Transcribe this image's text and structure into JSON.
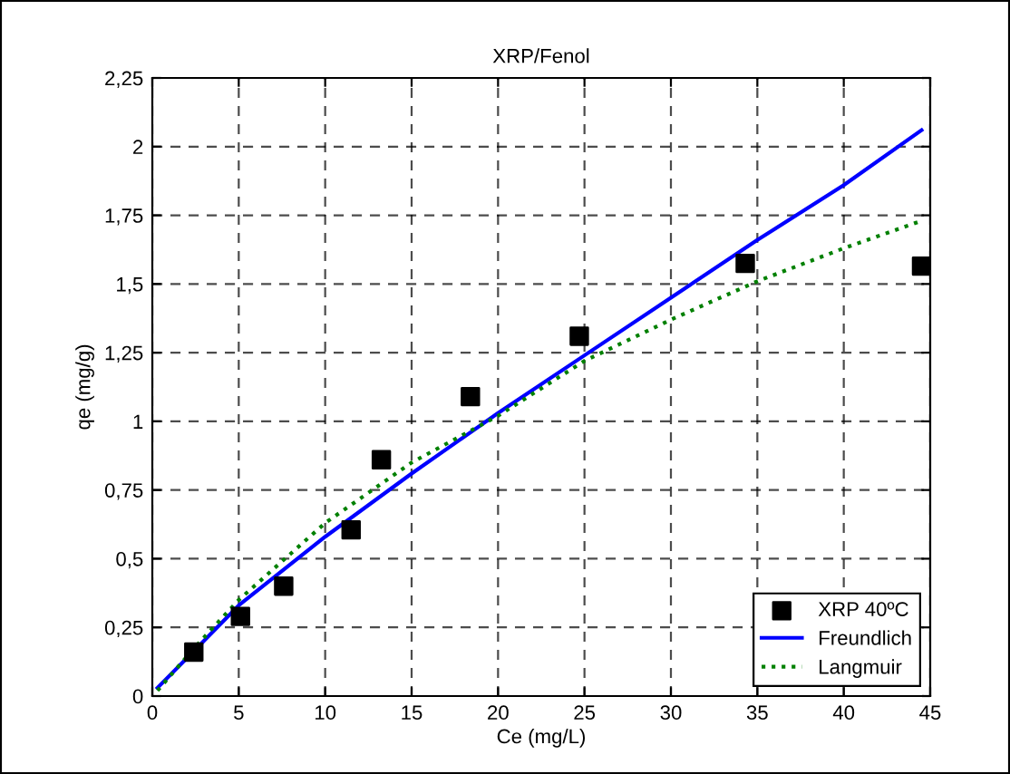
{
  "chart_data": {
    "type": "scatter",
    "title": "XRP/Fenol",
    "xlabel": "Ce (mg/L)",
    "ylabel": "qe (mg/g)",
    "xlim": [
      0,
      45
    ],
    "xticks": [
      0,
      5,
      10,
      15,
      20,
      25,
      30,
      35,
      40,
      45
    ],
    "ylim": [
      0,
      2.25
    ],
    "yticks": [
      0,
      {
        "value": 0.25,
        "label": "0,25"
      },
      {
        "value": 0.5,
        "label": "0,5"
      },
      {
        "value": 0.75,
        "label": "0,75"
      },
      1,
      {
        "value": 1.25,
        "label": "1,25"
      },
      {
        "value": 1.5,
        "label": "1,5"
      },
      {
        "value": 1.75,
        "label": "1,75"
      },
      2,
      {
        "value": 2.25,
        "label": "2,25"
      }
    ],
    "grid": true,
    "legend": "bottom right",
    "series": [
      {
        "name": "XRP 40ºC",
        "marker": "square",
        "color": "#000000",
        "x": [
          2.4,
          5.1,
          7.6,
          11.5,
          13.25,
          18.4,
          24.7,
          34.3,
          44.5
        ],
        "values": [
          0.16,
          0.29,
          0.4,
          0.605,
          0.86,
          1.09,
          1.31,
          1.575,
          1.565
        ]
      },
      {
        "name": "Freundlich",
        "type": "line",
        "line_style": "solid",
        "color": "#0000ff",
        "x": [
          0.3,
          2.5,
          5,
          10,
          15,
          20,
          25,
          30,
          35,
          40,
          44.5
        ],
        "values": [
          0.03,
          0.17,
          0.33,
          0.58,
          0.81,
          1.03,
          1.24,
          1.45,
          1.66,
          1.86,
          2.06
        ]
      },
      {
        "name": "Langmuir",
        "type": "line",
        "line_style": "dotted",
        "color": "#008000",
        "x": [
          0.3,
          2.5,
          5,
          10,
          15,
          20,
          25,
          30,
          35,
          40,
          44.5
        ],
        "values": [
          0.02,
          0.18,
          0.35,
          0.63,
          0.85,
          1.02,
          1.22,
          1.37,
          1.51,
          1.63,
          1.73
        ]
      }
    ]
  }
}
